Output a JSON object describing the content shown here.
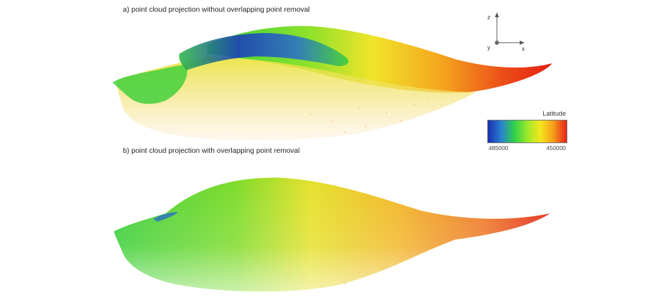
{
  "captions": {
    "a": "a) point cloud projection without overlapping point removal",
    "b": "b) point cloud projection with overlapping point removal"
  },
  "axes": {
    "z": "z",
    "y": "y",
    "x": "x"
  },
  "legend": {
    "title": "Latitude",
    "tick_min": "485000",
    "tick_max": "450000",
    "colors": [
      "#1a2fb0",
      "#2a7fd0",
      "#2fd04a",
      "#9be82a",
      "#f5e61e",
      "#f59b1a",
      "#e8231a"
    ]
  },
  "colors": {
    "panel_a": {
      "blue": "#1a2fb0",
      "green": "#3fd13a",
      "yellow": "#f2e526",
      "orange": "#f29a1c",
      "red": "#e62a17",
      "pale": "#f6d9a6"
    },
    "panel_b": {
      "green": "#45d13a",
      "yellow": "#eee32a",
      "orange": "#f0a02a",
      "red": "#e8351c",
      "pale": "#f7dcae"
    }
  }
}
